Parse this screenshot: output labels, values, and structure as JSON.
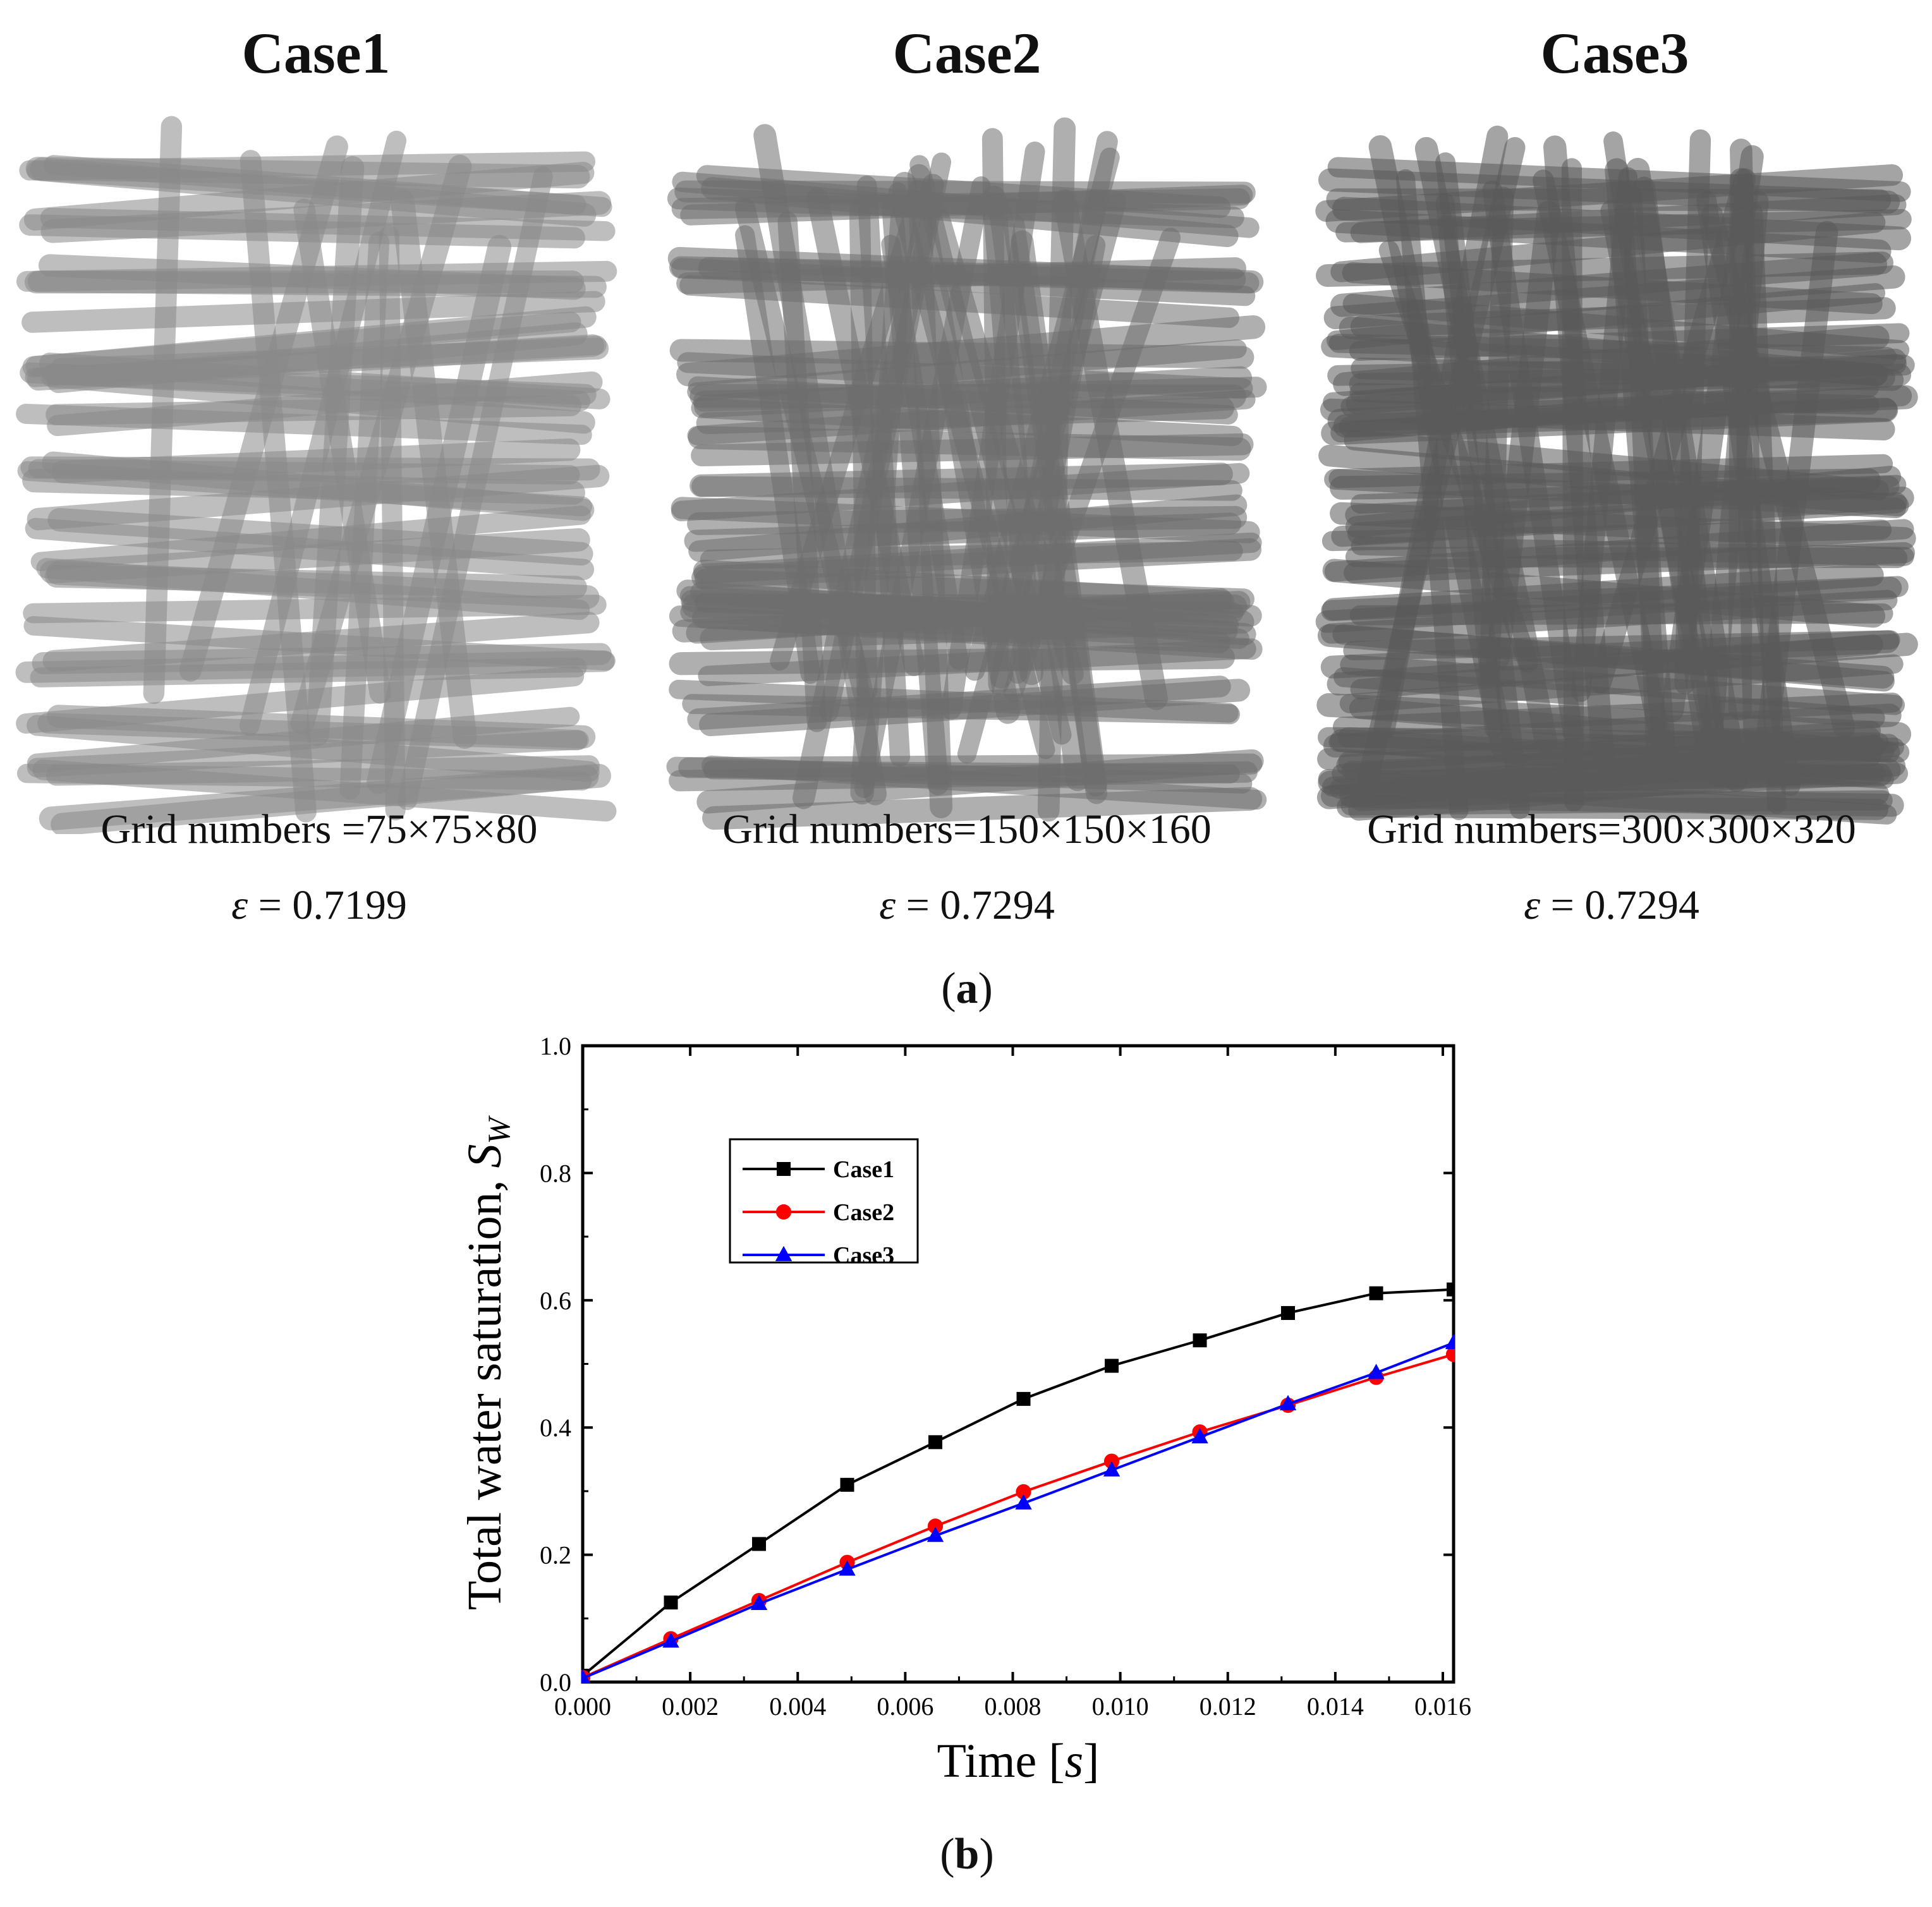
{
  "panel_a": {
    "label_open": "(",
    "label_letter": "a",
    "label_close": ")",
    "cases": [
      {
        "title": "Case1",
        "grid": "Grid numbers =75×75×80",
        "eps_symbol": "ε",
        "eps_rest": " = 0.7199"
      },
      {
        "title": "Case2",
        "grid": "Grid numbers=150×150×160",
        "eps_symbol": "ε",
        "eps_rest": " = 0.7294"
      },
      {
        "title": "Case3",
        "grid": "Grid numbers=300×300×320",
        "eps_symbol": "ε",
        "eps_rest": " = 0.7294"
      }
    ],
    "render_colors": [
      "#8a8a8a",
      "#6e6e6e",
      "#5a5a5a"
    ]
  },
  "panel_b": {
    "label_open": "(",
    "label_letter": "b",
    "label_close": ")"
  },
  "chart_data": {
    "type": "line",
    "xlabel_prefix": "Time [",
    "xlabel_var": "s",
    "xlabel_suffix": "]",
    "ylabel_prefix": "Total water saturation, ",
    "ylabel_var": "S",
    "ylabel_sub": "W",
    "xlim": [
      0.0,
      0.0162
    ],
    "ylim": [
      0.0,
      1.0
    ],
    "xticks": [
      "0.000",
      "0.002",
      "0.004",
      "0.006",
      "0.008",
      "0.010",
      "0.012",
      "0.014",
      "0.016"
    ],
    "xtick_values": [
      0.0,
      0.002,
      0.004,
      0.006,
      0.008,
      0.01,
      0.012,
      0.014,
      0.016
    ],
    "yticks": [
      "0.0",
      "0.2",
      "0.4",
      "0.6",
      "0.8",
      "1.0"
    ],
    "ytick_values": [
      0.0,
      0.2,
      0.4,
      0.6,
      0.8,
      1.0
    ],
    "legend_position": "upper-left",
    "series": [
      {
        "name": "Case1",
        "color": "#000000",
        "marker": "square",
        "x": [
          0.0,
          0.00164,
          0.00328,
          0.00492,
          0.00656,
          0.0082,
          0.00984,
          0.01148,
          0.01312,
          0.01476,
          0.0162
        ],
        "y": [
          0.01,
          0.125,
          0.217,
          0.31,
          0.377,
          0.445,
          0.497,
          0.537,
          0.58,
          0.611,
          0.617
        ]
      },
      {
        "name": "Case2",
        "color": "#ff0000",
        "marker": "circle",
        "x": [
          0.0,
          0.00164,
          0.00328,
          0.00492,
          0.00656,
          0.0082,
          0.00984,
          0.01148,
          0.01312,
          0.01476,
          0.0162
        ],
        "y": [
          0.007,
          0.068,
          0.128,
          0.188,
          0.245,
          0.299,
          0.347,
          0.393,
          0.435,
          0.479,
          0.515
        ]
      },
      {
        "name": "Case3",
        "color": "#0000ff",
        "marker": "triangle",
        "x": [
          0.0,
          0.00164,
          0.00328,
          0.00492,
          0.00656,
          0.0082,
          0.00984,
          0.01148,
          0.01312,
          0.01476,
          0.0162
        ],
        "y": [
          0.006,
          0.064,
          0.123,
          0.177,
          0.23,
          0.281,
          0.333,
          0.385,
          0.437,
          0.486,
          0.533
        ]
      }
    ]
  }
}
